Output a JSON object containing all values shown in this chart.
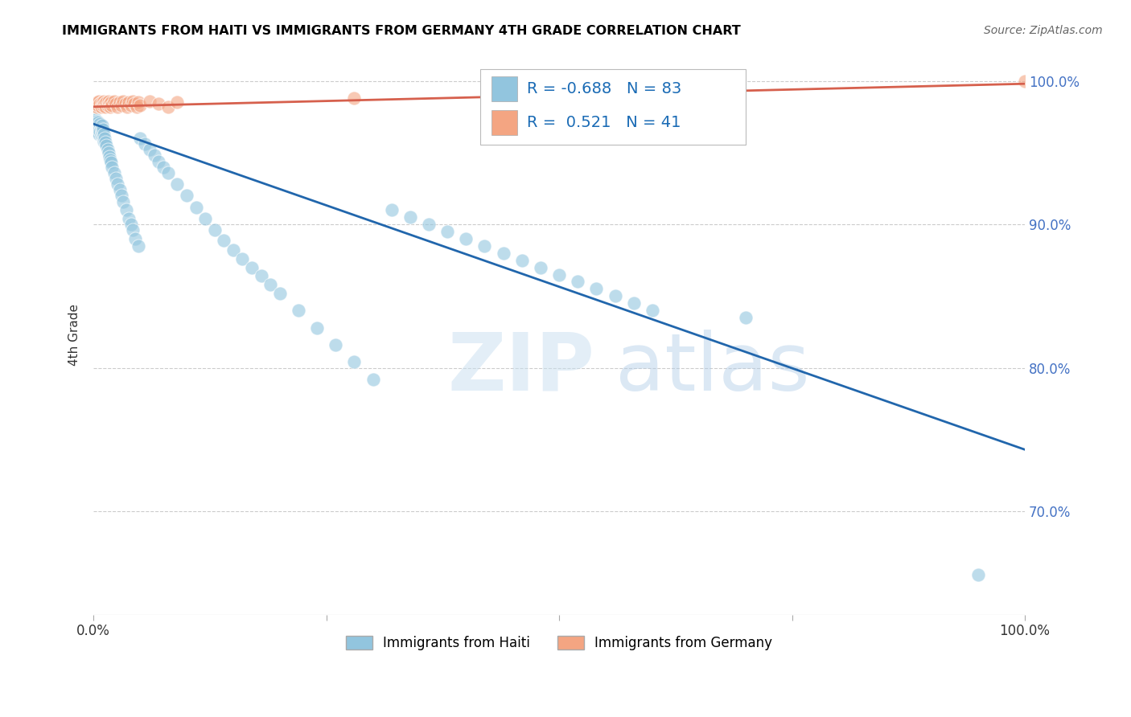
{
  "title": "IMMIGRANTS FROM HAITI VS IMMIGRANTS FROM GERMANY 4TH GRADE CORRELATION CHART",
  "source": "Source: ZipAtlas.com",
  "ylabel": "4th Grade",
  "legend1_label": "Immigrants from Haiti",
  "legend2_label": "Immigrants from Germany",
  "r_haiti": -0.688,
  "n_haiti": 83,
  "r_germany": 0.521,
  "n_germany": 41,
  "blue_color": "#92c5de",
  "blue_line_color": "#2166ac",
  "pink_color": "#f4a582",
  "pink_line_color": "#d6604d",
  "watermark_zip": "ZIP",
  "watermark_atlas": "atlas",
  "haiti_x": [
    0.001,
    0.002,
    0.002,
    0.003,
    0.003,
    0.004,
    0.004,
    0.005,
    0.005,
    0.006,
    0.006,
    0.007,
    0.007,
    0.008,
    0.008,
    0.009,
    0.009,
    0.01,
    0.01,
    0.011,
    0.011,
    0.012,
    0.013,
    0.014,
    0.015,
    0.016,
    0.017,
    0.018,
    0.019,
    0.02,
    0.022,
    0.024,
    0.026,
    0.028,
    0.03,
    0.032,
    0.035,
    0.038,
    0.04,
    0.042,
    0.045,
    0.048,
    0.05,
    0.055,
    0.06,
    0.065,
    0.07,
    0.075,
    0.08,
    0.09,
    0.1,
    0.11,
    0.12,
    0.13,
    0.14,
    0.15,
    0.16,
    0.17,
    0.18,
    0.19,
    0.2,
    0.22,
    0.24,
    0.26,
    0.28,
    0.3,
    0.32,
    0.34,
    0.36,
    0.38,
    0.4,
    0.42,
    0.44,
    0.46,
    0.48,
    0.5,
    0.52,
    0.54,
    0.56,
    0.58,
    0.6,
    0.7,
    0.95
  ],
  "haiti_y": [
    0.975,
    0.973,
    0.97,
    0.968,
    0.972,
    0.965,
    0.969,
    0.966,
    0.971,
    0.963,
    0.968,
    0.965,
    0.97,
    0.962,
    0.967,
    0.964,
    0.969,
    0.961,
    0.966,
    0.958,
    0.963,
    0.96,
    0.957,
    0.955,
    0.952,
    0.95,
    0.947,
    0.945,
    0.943,
    0.94,
    0.936,
    0.932,
    0.928,
    0.924,
    0.92,
    0.916,
    0.91,
    0.904,
    0.9,
    0.896,
    0.89,
    0.885,
    0.96,
    0.956,
    0.952,
    0.948,
    0.944,
    0.94,
    0.936,
    0.928,
    0.92,
    0.912,
    0.904,
    0.896,
    0.889,
    0.882,
    0.876,
    0.87,
    0.864,
    0.858,
    0.852,
    0.84,
    0.828,
    0.816,
    0.804,
    0.792,
    0.91,
    0.905,
    0.9,
    0.895,
    0.89,
    0.885,
    0.88,
    0.875,
    0.87,
    0.865,
    0.86,
    0.855,
    0.85,
    0.845,
    0.84,
    0.835,
    0.656
  ],
  "germany_x": [
    0.001,
    0.002,
    0.003,
    0.004,
    0.005,
    0.006,
    0.007,
    0.008,
    0.009,
    0.01,
    0.011,
    0.012,
    0.013,
    0.014,
    0.015,
    0.016,
    0.017,
    0.018,
    0.019,
    0.02,
    0.022,
    0.024,
    0.026,
    0.028,
    0.03,
    0.032,
    0.034,
    0.036,
    0.038,
    0.04,
    0.042,
    0.044,
    0.046,
    0.048,
    0.05,
    0.06,
    0.07,
    0.08,
    0.09,
    0.28,
    1.0
  ],
  "germany_y": [
    0.983,
    0.984,
    0.982,
    0.985,
    0.983,
    0.986,
    0.984,
    0.982,
    0.985,
    0.983,
    0.986,
    0.984,
    0.982,
    0.985,
    0.983,
    0.986,
    0.984,
    0.982,
    0.985,
    0.983,
    0.986,
    0.984,
    0.982,
    0.985,
    0.983,
    0.986,
    0.984,
    0.982,
    0.985,
    0.983,
    0.986,
    0.984,
    0.982,
    0.985,
    0.983,
    0.986,
    0.984,
    0.982,
    0.985,
    0.988,
    1.0
  ],
  "blue_trend_start_y": 0.97,
  "blue_trend_end_y": 0.743,
  "pink_trend_start_y": 0.982,
  "pink_trend_end_y": 0.998,
  "xmin": 0.0,
  "xmax": 1.0,
  "ymin": 0.628,
  "ymax": 1.018,
  "yticks": [
    0.7,
    0.8,
    0.9,
    1.0
  ],
  "ytick_labels": [
    "70.0%",
    "80.0%",
    "90.0%",
    "100.0%"
  ]
}
